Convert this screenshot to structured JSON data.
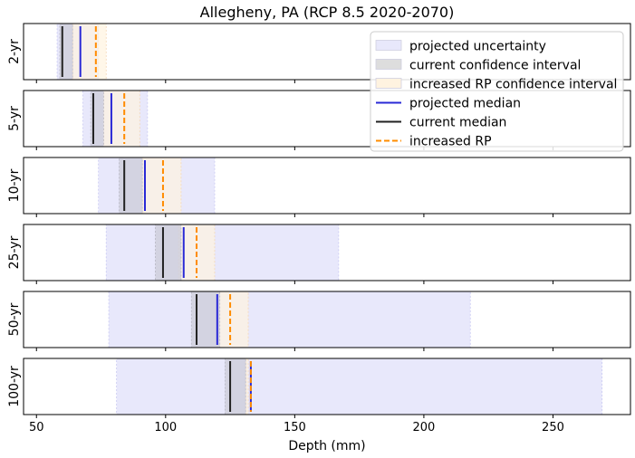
{
  "chart_data": {
    "type": "interval",
    "title": "Allegheny, PA (RCP 8.5 2020-2070)",
    "xlabel": "Depth (mm)",
    "xlim": [
      45,
      280
    ],
    "xticks": [
      50,
      100,
      150,
      200,
      250
    ],
    "legend_position": "top-right",
    "legend": [
      {
        "key": "proj_unc",
        "label": "projected uncertainty",
        "kind": "patch",
        "color": "#e8e8fb"
      },
      {
        "key": "cur_ci",
        "label": "current confidence interval",
        "kind": "patch",
        "color": "#dddddd"
      },
      {
        "key": "inc_ci",
        "label": "increased RP confidence interval",
        "kind": "patch",
        "color": "#fff3e0"
      },
      {
        "key": "proj_med",
        "label": "projected median",
        "kind": "line",
        "color": "#2a2ad6"
      },
      {
        "key": "cur_med",
        "label": "current median",
        "kind": "line",
        "color": "#222222"
      },
      {
        "key": "inc_rp",
        "label": "increased RP",
        "kind": "dashed",
        "color": "#ff8c00"
      }
    ],
    "panels": [
      {
        "label": "2-yr",
        "projected_uncertainty": [
          58,
          74
        ],
        "current_ci": [
          59,
          64
        ],
        "increased_rp_ci": [
          64,
          77
        ],
        "current_median": 60,
        "projected_median": 67,
        "increased_rp": 73
      },
      {
        "label": "5-yr",
        "projected_uncertainty": [
          68,
          93
        ],
        "current_ci": [
          71,
          76
        ],
        "increased_rp_ci": [
          76,
          90
        ],
        "current_median": 72,
        "projected_median": 79,
        "increased_rp": 84
      },
      {
        "label": "10-yr",
        "projected_uncertainty": [
          74,
          119
        ],
        "current_ci": [
          82,
          91
        ],
        "increased_rp_ci": [
          91,
          106
        ],
        "current_median": 84,
        "projected_median": 92,
        "increased_rp": 99
      },
      {
        "label": "25-yr",
        "projected_uncertainty": [
          77,
          167
        ],
        "current_ci": [
          96,
          106
        ],
        "increased_rp_ci": [
          105,
          119
        ],
        "current_median": 99,
        "projected_median": 107,
        "increased_rp": 112
      },
      {
        "label": "50-yr",
        "projected_uncertainty": [
          78,
          218
        ],
        "current_ci": [
          110,
          121
        ],
        "increased_rp_ci": [
          120,
          132
        ],
        "current_median": 112,
        "projected_median": 120,
        "increased_rp": 125
      },
      {
        "label": "100-yr",
        "projected_uncertainty": [
          81,
          269
        ],
        "current_ci": [
          123,
          131
        ],
        "increased_rp_ci": [
          131,
          132
        ],
        "current_median": 125,
        "projected_median": 133,
        "increased_rp": 133
      }
    ]
  }
}
